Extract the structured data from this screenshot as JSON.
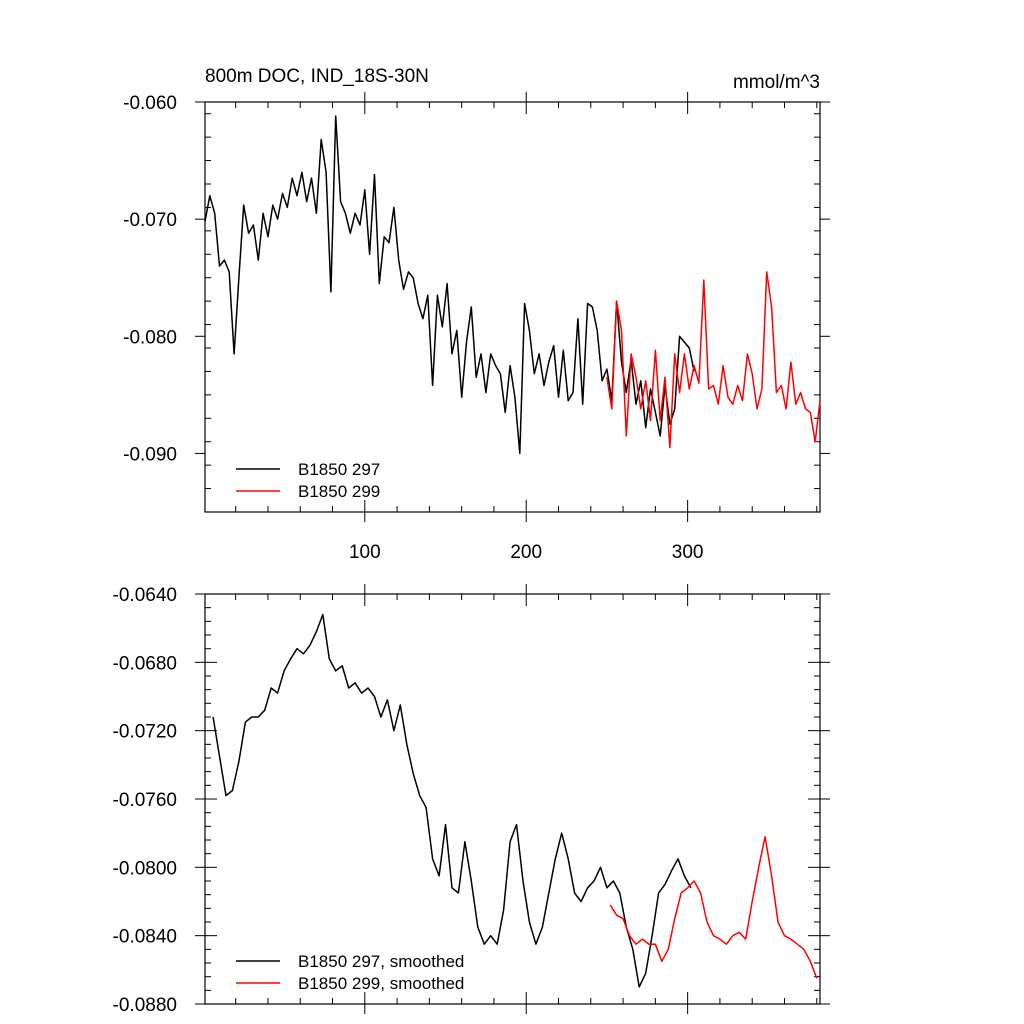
{
  "chart_data": [
    {
      "type": "line",
      "title": "800m DOC, IND_18S-30N",
      "units": "mmol/m^3",
      "xlim": [
        1,
        382
      ],
      "ylim": [
        -0.095,
        -0.06
      ],
      "x_ticks": [
        100,
        200,
        300
      ],
      "y_ticks": [
        -0.06,
        -0.07,
        -0.08,
        -0.09
      ],
      "y_tick_labels": [
        "-0.060",
        "-0.070",
        "-0.080",
        "-0.090"
      ],
      "legend_position": "bottom-left",
      "series": [
        {
          "name": "B1850 297",
          "color": "#000000",
          "x": [
            1,
            4,
            7,
            10,
            13,
            16,
            19,
            22,
            25,
            28,
            31,
            34,
            37,
            40,
            43,
            46,
            49,
            52,
            55,
            58,
            61,
            64,
            67,
            70,
            73,
            76,
            79,
            82,
            85,
            88,
            91,
            94,
            97,
            100,
            103,
            106,
            109,
            112,
            115,
            118,
            121,
            124,
            127,
            130,
            133,
            136,
            139,
            142,
            145,
            148,
            151,
            154,
            157,
            160,
            163,
            166,
            169,
            172,
            175,
            178,
            181,
            184,
            187,
            190,
            193,
            196,
            199,
            202,
            205,
            208,
            211,
            214,
            217,
            220,
            223,
            226,
            229,
            232,
            235,
            238,
            241,
            244,
            247,
            250,
            253,
            256,
            259,
            262,
            265,
            268,
            271,
            274,
            277,
            280,
            283,
            286,
            289,
            292,
            295,
            298,
            301,
            304
          ],
          "y": [
            -0.0702,
            -0.068,
            -0.0695,
            -0.074,
            -0.0735,
            -0.0745,
            -0.0815,
            -0.075,
            -0.0688,
            -0.0712,
            -0.0705,
            -0.0735,
            -0.0695,
            -0.0715,
            -0.0688,
            -0.07,
            -0.0678,
            -0.069,
            -0.0665,
            -0.068,
            -0.066,
            -0.0685,
            -0.0665,
            -0.0695,
            -0.0632,
            -0.066,
            -0.0762,
            -0.0612,
            -0.0685,
            -0.0695,
            -0.0712,
            -0.0695,
            -0.0705,
            -0.0675,
            -0.073,
            -0.0662,
            -0.0755,
            -0.0715,
            -0.072,
            -0.069,
            -0.0735,
            -0.076,
            -0.0745,
            -0.075,
            -0.0772,
            -0.0785,
            -0.0765,
            -0.0842,
            -0.0765,
            -0.0792,
            -0.0755,
            -0.0815,
            -0.0795,
            -0.0852,
            -0.0805,
            -0.0775,
            -0.0835,
            -0.0815,
            -0.0848,
            -0.0815,
            -0.0825,
            -0.0832,
            -0.0865,
            -0.0825,
            -0.0852,
            -0.09,
            -0.0772,
            -0.0795,
            -0.0832,
            -0.0815,
            -0.0842,
            -0.0822,
            -0.0808,
            -0.0852,
            -0.0812,
            -0.0855,
            -0.0848,
            -0.0785,
            -0.0858,
            -0.0772,
            -0.0775,
            -0.0795,
            -0.0838,
            -0.0828,
            -0.0855,
            -0.077,
            -0.0822,
            -0.0848,
            -0.082,
            -0.0858,
            -0.0838,
            -0.0878,
            -0.0845,
            -0.0865,
            -0.0885,
            -0.0842,
            -0.0875,
            -0.0862,
            -0.08,
            -0.0805,
            -0.081,
            -0.083
          ]
        },
        {
          "name": "B1850 299",
          "color": "#ff0000",
          "x": [
            250,
            253,
            256,
            259,
            262,
            265,
            268,
            271,
            274,
            277,
            280,
            283,
            286,
            289,
            292,
            295,
            298,
            301,
            304,
            307,
            310,
            313,
            316,
            319,
            322,
            325,
            328,
            331,
            334,
            337,
            340,
            343,
            346,
            349,
            352,
            355,
            358,
            361,
            364,
            367,
            370,
            373,
            376,
            379,
            382
          ],
          "y": [
            -0.0835,
            -0.0862,
            -0.077,
            -0.0795,
            -0.0885,
            -0.0815,
            -0.0835,
            -0.0862,
            -0.0838,
            -0.0872,
            -0.0812,
            -0.0872,
            -0.0835,
            -0.0895,
            -0.0815,
            -0.0848,
            -0.0815,
            -0.0845,
            -0.0825,
            -0.084,
            -0.0752,
            -0.0845,
            -0.0842,
            -0.0858,
            -0.0825,
            -0.0852,
            -0.0858,
            -0.0842,
            -0.0855,
            -0.0815,
            -0.0832,
            -0.0862,
            -0.0845,
            -0.0745,
            -0.0775,
            -0.0848,
            -0.0842,
            -0.0862,
            -0.0822,
            -0.0858,
            -0.0848,
            -0.0862,
            -0.0865,
            -0.089,
            -0.0855
          ]
        }
      ]
    },
    {
      "type": "line",
      "xlim": [
        1,
        382
      ],
      "ylim": [
        -0.088,
        -0.064
      ],
      "x_ticks": [
        100,
        200,
        300
      ],
      "y_ticks": [
        -0.064,
        -0.068,
        -0.072,
        -0.076,
        -0.08,
        -0.084,
        -0.088
      ],
      "y_tick_labels": [
        "-0.0640",
        "-0.0680",
        "-0.0720",
        "-0.0760",
        "-0.0800",
        "-0.0840",
        "-0.0880"
      ],
      "legend_position": "bottom-left",
      "series": [
        {
          "name": "B1850 297, smoothed",
          "color": "#000000",
          "x": [
            6,
            10,
            14,
            18,
            22,
            26,
            30,
            34,
            38,
            42,
            46,
            50,
            54,
            58,
            62,
            66,
            70,
            74,
            78,
            82,
            86,
            90,
            94,
            98,
            102,
            106,
            110,
            114,
            118,
            122,
            126,
            130,
            134,
            138,
            142,
            146,
            150,
            154,
            158,
            162,
            166,
            170,
            174,
            178,
            182,
            186,
            190,
            194,
            198,
            202,
            206,
            210,
            214,
            218,
            222,
            226,
            230,
            234,
            238,
            242,
            246,
            250,
            254,
            258,
            262,
            266,
            270,
            274,
            278,
            282,
            286,
            290,
            294,
            298,
            302
          ],
          "y": [
            -0.0712,
            -0.0735,
            -0.0758,
            -0.0755,
            -0.0738,
            -0.0715,
            -0.0712,
            -0.0712,
            -0.0708,
            -0.0695,
            -0.0698,
            -0.0685,
            -0.0678,
            -0.0672,
            -0.0675,
            -0.067,
            -0.0662,
            -0.0652,
            -0.0678,
            -0.0685,
            -0.0682,
            -0.0695,
            -0.0692,
            -0.0698,
            -0.0695,
            -0.07,
            -0.0712,
            -0.0702,
            -0.072,
            -0.0705,
            -0.0728,
            -0.0745,
            -0.0758,
            -0.0765,
            -0.0795,
            -0.0805,
            -0.0775,
            -0.0812,
            -0.0815,
            -0.0785,
            -0.0808,
            -0.0835,
            -0.0845,
            -0.084,
            -0.0845,
            -0.0825,
            -0.0785,
            -0.0775,
            -0.0808,
            -0.0832,
            -0.0845,
            -0.0835,
            -0.0815,
            -0.0795,
            -0.078,
            -0.0795,
            -0.0815,
            -0.082,
            -0.0812,
            -0.0808,
            -0.08,
            -0.0812,
            -0.0808,
            -0.0815,
            -0.0835,
            -0.0848,
            -0.087,
            -0.0862,
            -0.084,
            -0.0815,
            -0.081,
            -0.0802,
            -0.0795,
            -0.0805,
            -0.0812
          ]
        },
        {
          "name": "B1850 299, smoothed",
          "color": "#ff0000",
          "x": [
            252,
            256,
            260,
            264,
            268,
            272,
            276,
            280,
            284,
            288,
            292,
            296,
            300,
            304,
            308,
            312,
            316,
            320,
            324,
            328,
            332,
            336,
            340,
            344,
            348,
            352,
            356,
            360,
            364,
            368,
            372,
            376,
            380
          ],
          "y": [
            -0.0822,
            -0.0828,
            -0.083,
            -0.084,
            -0.0845,
            -0.0842,
            -0.0845,
            -0.0845,
            -0.0855,
            -0.0848,
            -0.083,
            -0.0815,
            -0.0812,
            -0.0808,
            -0.0815,
            -0.0832,
            -0.084,
            -0.0842,
            -0.0845,
            -0.084,
            -0.0838,
            -0.0842,
            -0.082,
            -0.08,
            -0.0782,
            -0.0805,
            -0.0832,
            -0.084,
            -0.0842,
            -0.0845,
            -0.0848,
            -0.0855,
            -0.0865
          ]
        }
      ]
    }
  ]
}
